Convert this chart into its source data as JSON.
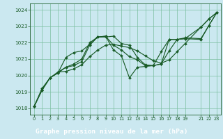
{
  "xlabel": "Graphe pression niveau de la mer (hPa)",
  "bg_color": "#cbe8f0",
  "plot_bg_color": "#cbe8f0",
  "footer_bg": "#2d6b3c",
  "footer_text_color": "#ffffff",
  "grid_color": "#7bbfa0",
  "line_color": "#1a5c28",
  "ylim": [
    1017.6,
    1024.4
  ],
  "xlim": [
    -0.5,
    23.5
  ],
  "yticks": [
    1018,
    1019,
    1020,
    1021,
    1022,
    1023,
    1024
  ],
  "xticks": [
    0,
    1,
    2,
    3,
    4,
    5,
    6,
    7,
    8,
    9,
    10,
    11,
    12,
    13,
    14,
    15,
    16,
    17,
    18,
    19,
    21,
    22,
    23
  ],
  "series": [
    {
      "x": [
        0,
        1,
        2,
        3,
        4,
        5,
        6,
        7,
        8,
        9,
        10,
        11,
        12,
        13,
        14,
        15,
        16,
        17,
        18,
        19,
        21,
        22,
        23
      ],
      "y": [
        1018.1,
        1019.2,
        1019.85,
        1020.2,
        1020.25,
        1020.4,
        1020.65,
        1021.15,
        1021.55,
        1021.85,
        1021.9,
        1021.8,
        1021.7,
        1021.5,
        1021.2,
        1020.9,
        1020.75,
        1020.95,
        1021.45,
        1021.95,
        1022.95,
        1023.45,
        1023.85
      ]
    },
    {
      "x": [
        0,
        1,
        2,
        3,
        4,
        5,
        6,
        7,
        8,
        9,
        10,
        11,
        12,
        13,
        14,
        15,
        16,
        17,
        18,
        19,
        21,
        22,
        23
      ],
      "y": [
        1018.1,
        1019.15,
        1019.85,
        1020.2,
        1020.5,
        1020.7,
        1021.0,
        1022.0,
        1022.35,
        1022.35,
        1022.4,
        1021.95,
        1021.85,
        1021.1,
        1020.65,
        1020.6,
        1020.7,
        1021.5,
        1022.2,
        1022.3,
        1022.25,
        1023.05,
        1023.85
      ]
    },
    {
      "x": [
        0,
        1,
        2,
        3,
        4,
        5,
        6,
        7,
        8,
        9,
        10,
        11,
        12,
        13,
        14,
        15,
        16,
        17,
        18,
        19,
        21,
        22,
        23
      ],
      "y": [
        1018.1,
        1019.1,
        1019.85,
        1020.15,
        1020.5,
        1020.6,
        1020.85,
        1021.85,
        1022.35,
        1022.4,
        1021.85,
        1021.55,
        1021.15,
        1020.95,
        1020.6,
        1020.6,
        1020.7,
        1022.2,
        1022.2,
        1022.25,
        1022.2,
        1023.05,
        1023.85
      ]
    },
    {
      "x": [
        0,
        1,
        2,
        3,
        4,
        5,
        6,
        7,
        8,
        9,
        10,
        11,
        12,
        13,
        14,
        15,
        16,
        17,
        18,
        19,
        21,
        22,
        23
      ],
      "y": [
        1018.1,
        1019.1,
        1019.85,
        1020.15,
        1021.1,
        1021.4,
        1021.5,
        1021.9,
        1022.35,
        1022.4,
        1021.55,
        1021.2,
        1019.85,
        1020.5,
        1020.55,
        1020.6,
        1021.45,
        1022.2,
        1022.2,
        1022.25,
        1022.95,
        1023.45,
        1023.85
      ]
    }
  ]
}
